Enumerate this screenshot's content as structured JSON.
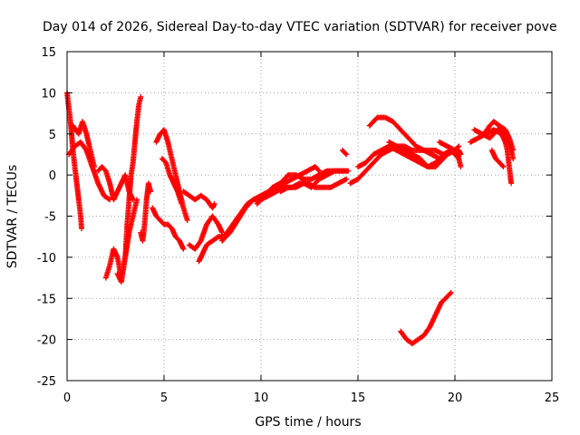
{
  "chart_data": {
    "type": "scatter",
    "title": "Day 014 of 2026, Sidereal Day-to-day VTEC variation (SDTVAR) for receiver pove",
    "xlabel": "GPS time / hours",
    "ylabel": "SDTVAR / TECUs",
    "xlim": [
      0,
      25
    ],
    "ylim": [
      -25,
      15
    ],
    "xticks": [
      0,
      5,
      10,
      15,
      20,
      25
    ],
    "yticks": [
      -25,
      -20,
      -15,
      -10,
      -5,
      0,
      5,
      10,
      15
    ],
    "grid": true,
    "marker": "+",
    "series": [
      {
        "name": "SDTVAR",
        "color": "#ff0000",
        "segments": [
          [
            [
              0.0,
              10.0
            ],
            [
              0.1,
              8.0
            ],
            [
              0.2,
              6.0
            ],
            [
              0.3,
              3.0
            ],
            [
              0.4,
              1.0
            ],
            [
              0.5,
              -1.0
            ],
            [
              0.6,
              -3.0
            ],
            [
              0.7,
              -5.0
            ],
            [
              0.75,
              -6.5
            ]
          ],
          [
            [
              0.1,
              2.5
            ],
            [
              0.4,
              3.5
            ],
            [
              0.7,
              4.0
            ],
            [
              1.0,
              3.0
            ],
            [
              1.3,
              1.0
            ],
            [
              1.6,
              -1.0
            ],
            [
              1.9,
              -2.5
            ],
            [
              2.2,
              -3.0
            ]
          ],
          [
            [
              0.3,
              6.0
            ],
            [
              0.6,
              5.0
            ],
            [
              0.8,
              6.5
            ],
            [
              1.0,
              5.0
            ],
            [
              1.2,
              3.0
            ],
            [
              1.4,
              1.0
            ]
          ],
          [
            [
              1.6,
              0.5
            ],
            [
              1.8,
              1.0
            ],
            [
              2.0,
              0.5
            ],
            [
              2.2,
              -1.0
            ],
            [
              2.4,
              -3.0
            ],
            [
              2.6,
              -2.0
            ],
            [
              2.8,
              -1.0
            ],
            [
              3.0,
              0.0
            ],
            [
              3.2,
              -2.0
            ],
            [
              3.4,
              -3.0
            ]
          ],
          [
            [
              2.0,
              -12.5
            ],
            [
              2.2,
              -11.0
            ],
            [
              2.4,
              -9.0
            ],
            [
              2.6,
              -10.0
            ],
            [
              2.8,
              -12.5
            ],
            [
              3.0,
              -10.0
            ],
            [
              3.2,
              -7.0
            ],
            [
              3.4,
              -5.0
            ],
            [
              3.6,
              -3.0
            ]
          ],
          [
            [
              2.6,
              -12.0
            ],
            [
              2.8,
              -13.0
            ],
            [
              3.0,
              -10.0
            ],
            [
              3.1,
              -6.0
            ],
            [
              3.2,
              -3.0
            ],
            [
              3.3,
              0.0
            ],
            [
              3.4,
              1.5
            ],
            [
              3.5,
              4.0
            ],
            [
              3.6,
              6.5
            ],
            [
              3.7,
              8.5
            ],
            [
              3.8,
              9.5
            ]
          ],
          [
            [
              3.8,
              -7.0
            ],
            [
              3.9,
              -8.0
            ],
            [
              4.0,
              -6.0
            ],
            [
              4.1,
              -3.0
            ],
            [
              4.2,
              -1.0
            ],
            [
              4.3,
              -2.0
            ]
          ],
          [
            [
              4.4,
              -4.0
            ],
            [
              4.6,
              -5.0
            ],
            [
              4.8,
              -5.5
            ],
            [
              5.0,
              -6.0
            ],
            [
              5.2,
              -6.0
            ],
            [
              5.4,
              -6.5
            ],
            [
              5.6,
              -7.5
            ],
            [
              5.8,
              -8.0
            ],
            [
              6.0,
              -9.0
            ]
          ],
          [
            [
              4.6,
              4.0
            ],
            [
              4.8,
              5.0
            ],
            [
              5.0,
              5.5
            ],
            [
              5.2,
              4.0
            ],
            [
              5.4,
              2.0
            ],
            [
              5.6,
              0.0
            ],
            [
              5.8,
              -2.0
            ],
            [
              6.0,
              -4.0
            ],
            [
              6.2,
              -5.5
            ]
          ],
          [
            [
              4.9,
              2.0
            ],
            [
              5.1,
              1.5
            ],
            [
              5.3,
              0.0
            ],
            [
              5.5,
              -1.0
            ],
            [
              5.7,
              -2.0
            ],
            [
              5.9,
              -3.5
            ]
          ],
          [
            [
              6.0,
              -2.0
            ],
            [
              6.3,
              -2.5
            ],
            [
              6.6,
              -3.0
            ],
            [
              6.9,
              -2.5
            ],
            [
              7.2,
              -3.0
            ],
            [
              7.5,
              -4.0
            ],
            [
              7.6,
              -3.5
            ]
          ],
          [
            [
              6.3,
              -8.5
            ],
            [
              6.6,
              -9.0
            ],
            [
              6.9,
              -8.0
            ],
            [
              7.2,
              -6.0
            ],
            [
              7.5,
              -5.0
            ],
            [
              7.8,
              -6.0
            ],
            [
              8.0,
              -7.0
            ]
          ],
          [
            [
              6.8,
              -10.5
            ],
            [
              7.0,
              -9.5
            ],
            [
              7.2,
              -8.5
            ],
            [
              7.5,
              -8.0
            ],
            [
              7.8,
              -7.5
            ],
            [
              8.1,
              -7.5
            ],
            [
              8.4,
              -6.5
            ],
            [
              8.7,
              -5.5
            ],
            [
              9.0,
              -4.5
            ],
            [
              9.3,
              -3.5
            ],
            [
              9.6,
              -3.0
            ],
            [
              10.0,
              -3.0
            ],
            [
              10.4,
              -2.5
            ],
            [
              10.8,
              -2.0
            ],
            [
              11.2,
              -1.5
            ],
            [
              11.6,
              -1.5
            ],
            [
              12.0,
              -1.0
            ],
            [
              12.4,
              -1.0
            ],
            [
              12.8,
              -1.5
            ],
            [
              13.2,
              -1.5
            ],
            [
              13.6,
              -1.5
            ],
            [
              14.0,
              -1.0
            ],
            [
              14.4,
              -0.5
            ]
          ],
          [
            [
              8.0,
              -8.0
            ],
            [
              8.4,
              -7.0
            ],
            [
              8.8,
              -5.5
            ],
            [
              9.2,
              -4.0
            ],
            [
              9.6,
              -3.0
            ],
            [
              10.0,
              -2.5
            ],
            [
              10.4,
              -2.0
            ],
            [
              10.8,
              -1.5
            ],
            [
              11.2,
              -1.0
            ],
            [
              11.6,
              -0.5
            ],
            [
              12.0,
              0.0
            ],
            [
              12.4,
              0.5
            ],
            [
              12.8,
              1.0
            ],
            [
              13.0,
              0.5
            ]
          ],
          [
            [
              9.8,
              -3.5
            ],
            [
              10.2,
              -2.5
            ],
            [
              10.6,
              -1.5
            ],
            [
              11.0,
              -1.0
            ],
            [
              11.4,
              0.0
            ],
            [
              11.8,
              0.0
            ],
            [
              12.2,
              -0.5
            ],
            [
              12.6,
              -0.5
            ],
            [
              13.0,
              0.0
            ],
            [
              13.4,
              0.5
            ],
            [
              13.8,
              0.5
            ],
            [
              14.2,
              0.5
            ],
            [
              14.5,
              0.5
            ]
          ],
          [
            [
              11.0,
              -2.0
            ],
            [
              11.4,
              -1.5
            ],
            [
              11.8,
              -1.5
            ],
            [
              12.2,
              -1.0
            ],
            [
              12.6,
              -1.5
            ],
            [
              13.0,
              -0.5
            ],
            [
              13.4,
              0.0
            ],
            [
              13.8,
              0.5
            ],
            [
              14.2,
              0.5
            ]
          ],
          [
            [
              14.2,
              3.0
            ],
            [
              14.4,
              2.5
            ]
          ],
          [
            [
              14.6,
              -1.0
            ],
            [
              15.0,
              -0.5
            ],
            [
              15.4,
              0.5
            ],
            [
              15.8,
              1.5
            ],
            [
              16.2,
              2.5
            ],
            [
              16.6,
              3.0
            ],
            [
              17.0,
              3.5
            ],
            [
              17.4,
              3.5
            ],
            [
              17.8,
              3.0
            ],
            [
              18.2,
              3.0
            ],
            [
              18.6,
              3.0
            ],
            [
              19.0,
              3.0
            ],
            [
              19.4,
              2.5
            ],
            [
              19.8,
              3.0
            ],
            [
              20.2,
              3.0
            ],
            [
              20.3,
              2.5
            ]
          ],
          [
            [
              15.0,
              1.0
            ],
            [
              15.4,
              1.5
            ],
            [
              15.8,
              2.5
            ],
            [
              16.2,
              3.0
            ],
            [
              16.6,
              3.5
            ],
            [
              17.0,
              3.0
            ],
            [
              17.4,
              2.5
            ],
            [
              17.8,
              2.0
            ],
            [
              18.2,
              1.5
            ],
            [
              18.6,
              1.0
            ],
            [
              19.0,
              1.5
            ],
            [
              19.4,
              2.0
            ],
            [
              19.8,
              3.0
            ],
            [
              20.2,
              2.0
            ]
          ],
          [
            [
              15.6,
              6.0
            ],
            [
              16.0,
              7.0
            ],
            [
              16.4,
              7.0
            ],
            [
              16.8,
              6.5
            ],
            [
              17.2,
              5.5
            ],
            [
              17.6,
              4.5
            ],
            [
              18.0,
              3.5
            ],
            [
              18.4,
              3.0
            ],
            [
              18.8,
              2.5
            ],
            [
              19.2,
              2.0
            ],
            [
              19.6,
              2.5
            ],
            [
              20.0,
              3.0
            ],
            [
              20.2,
              3.5
            ]
          ],
          [
            [
              16.6,
              4.0
            ],
            [
              17.0,
              3.5
            ],
            [
              17.4,
              3.0
            ],
            [
              17.8,
              2.5
            ],
            [
              18.2,
              2.0
            ],
            [
              18.6,
              1.0
            ],
            [
              19.0,
              1.0
            ],
            [
              19.4,
              2.0
            ]
          ],
          [
            [
              17.2,
              -19.0
            ],
            [
              17.5,
              -20.0
            ],
            [
              17.8,
              -20.5
            ],
            [
              18.1,
              -20.0
            ],
            [
              18.4,
              -19.5
            ],
            [
              18.7,
              -18.5
            ],
            [
              19.0,
              -17.0
            ],
            [
              19.3,
              -15.5
            ],
            [
              19.6,
              -14.8
            ],
            [
              19.8,
              -14.3
            ]
          ],
          [
            [
              19.2,
              4.0
            ],
            [
              19.6,
              3.5
            ],
            [
              20.0,
              3.0
            ],
            [
              20.2,
              2.0
            ],
            [
              20.3,
              1.0
            ]
          ],
          [
            [
              20.8,
              4.0
            ],
            [
              21.2,
              4.5
            ],
            [
              21.6,
              5.0
            ],
            [
              22.0,
              5.5
            ],
            [
              22.4,
              5.0
            ],
            [
              22.6,
              4.0
            ],
            [
              22.7,
              3.0
            ],
            [
              22.8,
              1.0
            ],
            [
              22.9,
              -1.0
            ]
          ],
          [
            [
              21.0,
              5.5
            ],
            [
              21.4,
              5.0
            ],
            [
              21.8,
              4.5
            ],
            [
              22.2,
              5.5
            ],
            [
              22.5,
              5.5
            ],
            [
              22.7,
              4.5
            ],
            [
              22.9,
              3.0
            ],
            [
              23.0,
              2.0
            ]
          ],
          [
            [
              21.5,
              5.0
            ],
            [
              21.8,
              6.0
            ],
            [
              22.0,
              6.5
            ],
            [
              22.3,
              6.0
            ],
            [
              22.6,
              5.5
            ],
            [
              22.8,
              4.5
            ],
            [
              23.0,
              3.0
            ]
          ],
          [
            [
              21.9,
              3.0
            ],
            [
              22.1,
              2.0
            ],
            [
              22.3,
              1.5
            ],
            [
              22.5,
              1.0
            ]
          ]
        ]
      }
    ]
  }
}
